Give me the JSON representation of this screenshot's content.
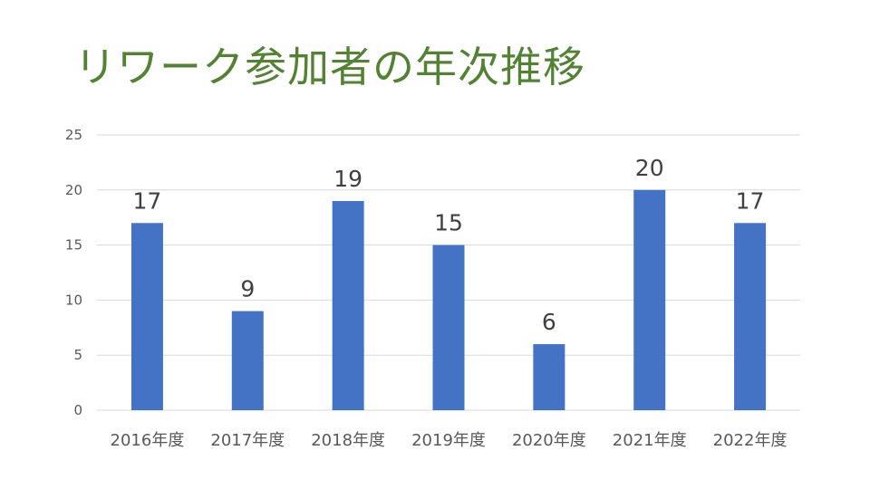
{
  "title": "リワーク参加者の年次推移",
  "colors": {
    "title": "#548235",
    "bar": "#4472C4",
    "grid": "#D9D9D9",
    "axis_text": "#595959",
    "data_label": "#404040"
  },
  "chart_data": {
    "type": "bar",
    "title": "",
    "xlabel": "",
    "ylabel": "",
    "categories": [
      "2016年度",
      "2017年度",
      "2018年度",
      "2019年度",
      "2020年度",
      "2021年度",
      "2022年度"
    ],
    "values": [
      17,
      9,
      19,
      15,
      6,
      20,
      17
    ],
    "ylim": [
      0,
      25
    ],
    "yticks": [
      0,
      5,
      10,
      15,
      20,
      25
    ],
    "grid": true,
    "legend": "none",
    "data_labels": true
  }
}
